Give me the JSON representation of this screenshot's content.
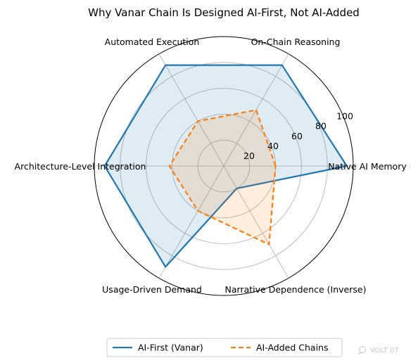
{
  "chart_data": {
    "type": "radar",
    "title": "Why Vanar Chain Is Designed AI-First, Not AI-Added",
    "categories": [
      "Native AI Memory",
      "On-Chain Reasoning",
      "Automated Execution",
      "Architecture-Level Integration",
      "Usage-Driven Demand",
      "Narrative Dependence (Inverse)"
    ],
    "rlim": [
      0,
      100
    ],
    "rticks": [
      20,
      40,
      60,
      80,
      100
    ],
    "rtick_labels": [
      "20",
      "40",
      "60",
      "80",
      "100"
    ],
    "grid": true,
    "legend_position": "bottom",
    "series": [
      {
        "name": "AI-First (Vanar)",
        "values": [
          95,
          90,
          90,
          92,
          90,
          20
        ],
        "color": "#1f77b4",
        "line_style": "solid",
        "fill": true
      },
      {
        "name": "AI-Added Chains",
        "values": [
          40,
          50,
          40,
          42,
          40,
          70
        ],
        "color": "#ff7f0e",
        "line_style": "dashed",
        "fill": true
      }
    ]
  },
  "watermark": {
    "text": "VOLT 07",
    "icon": "chat-bubble-icon"
  }
}
